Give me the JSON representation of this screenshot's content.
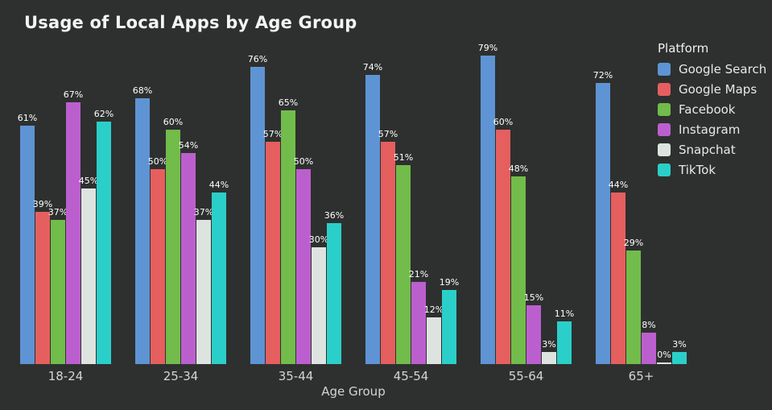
{
  "title": "Usage of Local Apps by Age Group",
  "colors": {
    "background": "#2e302f",
    "title_text": "#f4f4f4",
    "axis_text": "#d4d4d4",
    "value_label_text": "#ffffff"
  },
  "legend": {
    "title": "Platform",
    "entries": [
      "Google Search",
      "Google Maps",
      "Facebook",
      "Instagram",
      "Snapchat",
      "TikTok"
    ]
  },
  "chart_data": {
    "type": "bar",
    "title": "Usage of Local Apps by Age Group",
    "xlabel": "Age Group",
    "ylabel": "",
    "ylim": [
      0,
      100
    ],
    "grid": false,
    "legend_position": "right",
    "legend_title": "Platform",
    "value_label_suffix": "%",
    "categories": [
      "18-24",
      "25-34",
      "35-44",
      "45-54",
      "55-64",
      "65+"
    ],
    "series": [
      {
        "name": "Google Search",
        "color": "#5e94d4",
        "values": [
          61,
          68,
          76,
          74,
          79,
          72
        ]
      },
      {
        "name": "Google Maps",
        "color": "#e55f5f",
        "values": [
          39,
          50,
          57,
          57,
          60,
          44
        ]
      },
      {
        "name": "Facebook",
        "color": "#71bc4a",
        "values": [
          37,
          60,
          65,
          51,
          48,
          29
        ]
      },
      {
        "name": "Instagram",
        "color": "#bc5fce",
        "values": [
          67,
          54,
          50,
          21,
          15,
          8
        ]
      },
      {
        "name": "Snapchat",
        "color": "#dde4e0",
        "values": [
          45,
          37,
          30,
          12,
          3,
          0
        ]
      },
      {
        "name": "TikTok",
        "color": "#2bcfc9",
        "values": [
          62,
          44,
          36,
          19,
          11,
          3
        ]
      }
    ]
  }
}
